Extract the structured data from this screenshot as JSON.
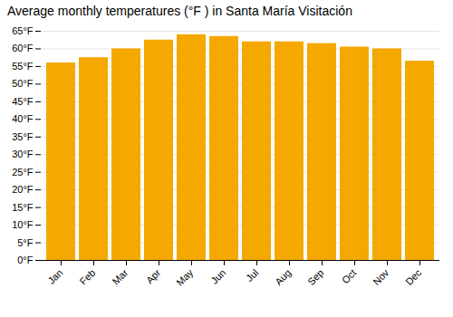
{
  "chart_data": {
    "type": "bar",
    "title": "Average monthly temperatures (°F ) in Santa María Visitación",
    "categories": [
      "Jan",
      "Feb",
      "Mar",
      "Apr",
      "May",
      "Jun",
      "Jul",
      "Aug",
      "Sep",
      "Oct",
      "Nov",
      "Dec"
    ],
    "values": [
      56.0,
      57.5,
      60.0,
      62.5,
      64.0,
      63.5,
      62.0,
      62.0,
      61.5,
      60.5,
      60.0,
      56.5
    ],
    "color": "#F5A800",
    "ylim": [
      0,
      65
    ],
    "yticks": [
      {
        "value": 0,
        "label": "0°F"
      },
      {
        "value": 5,
        "label": "5°F"
      },
      {
        "value": 10,
        "label": "10°F"
      },
      {
        "value": 15,
        "label": "15°F"
      },
      {
        "value": 20,
        "label": "20°F"
      },
      {
        "value": 25,
        "label": "25°F"
      },
      {
        "value": 30,
        "label": "30°F"
      },
      {
        "value": 35,
        "label": "35°F"
      },
      {
        "value": 40,
        "label": "40°F"
      },
      {
        "value": 45,
        "label": "45°F"
      },
      {
        "value": 50,
        "label": "50°F"
      },
      {
        "value": 55,
        "label": "55°F"
      },
      {
        "value": 60,
        "label": "60°F"
      },
      {
        "value": 65,
        "label": "65°F"
      }
    ],
    "grid": true
  }
}
